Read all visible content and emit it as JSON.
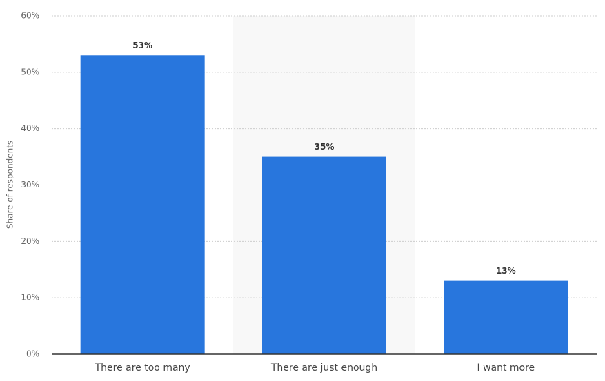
{
  "chart_data": {
    "type": "bar",
    "y_label": "Share of respondents",
    "categories": [
      "There are too many",
      "There are just enough",
      "I want more"
    ],
    "values": [
      53,
      35,
      13
    ],
    "value_labels": [
      "53%",
      "35%",
      "13%"
    ],
    "color": "#2876dd",
    "ylim": [
      0,
      60
    ],
    "yticks": [
      {
        "value": 0,
        "label": "0%"
      },
      {
        "value": 10,
        "label": "10%"
      },
      {
        "value": 20,
        "label": "20%"
      },
      {
        "value": 30,
        "label": "30%"
      },
      {
        "value": 40,
        "label": "40%"
      },
      {
        "value": 50,
        "label": "50%"
      },
      {
        "value": 60,
        "label": "60%"
      }
    ],
    "grid": true
  }
}
